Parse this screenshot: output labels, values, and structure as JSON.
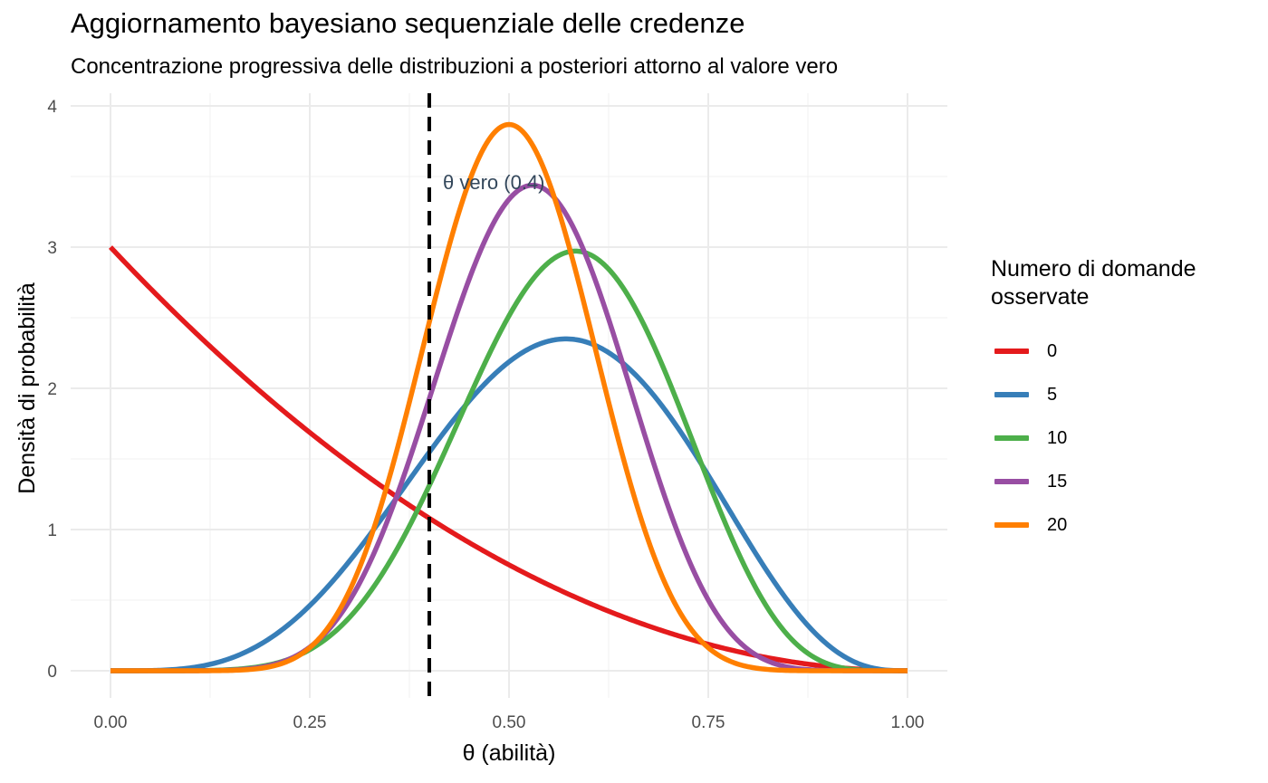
{
  "chart_data": {
    "type": "line",
    "title": "Aggiornamento bayesiano sequenziale delle credenze",
    "subtitle": "Concentrazione progressiva delle distribuzioni a posteriori attorno al valore vero",
    "xlabel": "θ  (abilità)",
    "ylabel": "Densità di probabilità",
    "xlim": [
      0,
      1
    ],
    "ylim": [
      0,
      4
    ],
    "x_ticks": [
      "0.00",
      "0.25",
      "0.50",
      "0.75",
      "1.00"
    ],
    "y_ticks": [
      "0",
      "1",
      "2",
      "3",
      "4"
    ],
    "grid": true,
    "legend_title": "Numero di domande osservate",
    "legend_position": "right",
    "reference_line": {
      "x": 0.4,
      "style": "dashed",
      "color": "#000000",
      "label": "θ vero (0.4)",
      "label_color": "#33475B"
    },
    "series": [
      {
        "name": "0",
        "color": "#E41A1C",
        "alpha": 1,
        "beta": 3
      },
      {
        "name": "5",
        "color": "#377EB8",
        "alpha": 5,
        "beta": 4
      },
      {
        "name": "10",
        "color": "#4DAF4A",
        "alpha": 8,
        "beta": 6
      },
      {
        "name": "15",
        "color": "#984EA3",
        "alpha": 10,
        "beta": 9
      },
      {
        "name": "20",
        "color": "#FF7F00",
        "alpha": 12,
        "beta": 12
      }
    ]
  }
}
